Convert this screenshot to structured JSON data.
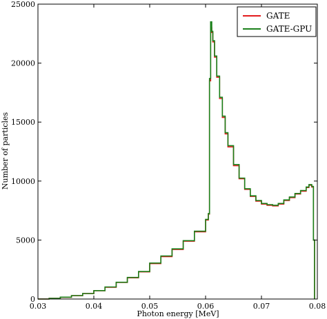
{
  "chart_data": {
    "type": "line",
    "title": "",
    "xlabel": "Photon energy [MeV]",
    "ylabel": "Number of particles",
    "xlim": [
      0.03,
      0.08
    ],
    "ylim": [
      0,
      25000
    ],
    "x_ticks": [
      0.03,
      0.04,
      0.05,
      0.06,
      0.07,
      0.08
    ],
    "x_tick_labels": [
      "0.03",
      "0.04",
      "0.05",
      "0.06",
      "0.07",
      "0.08"
    ],
    "y_ticks": [
      0,
      5000,
      10000,
      15000,
      20000,
      25000
    ],
    "y_tick_labels": [
      "0",
      "5000",
      "10000",
      "15000",
      "20000",
      "25000"
    ],
    "grid": false,
    "legend_position": "top-right",
    "x": [
      0.03,
      0.032,
      0.034,
      0.036,
      0.038,
      0.04,
      0.042,
      0.044,
      0.046,
      0.048,
      0.05,
      0.052,
      0.054,
      0.056,
      0.058,
      0.06,
      0.0605,
      0.0607,
      0.0609,
      0.0611,
      0.0613,
      0.0616,
      0.062,
      0.0625,
      0.063,
      0.0635,
      0.064,
      0.065,
      0.066,
      0.067,
      0.068,
      0.069,
      0.07,
      0.071,
      0.072,
      0.073,
      0.074,
      0.075,
      0.076,
      0.077,
      0.078,
      0.0785,
      0.079,
      0.0793,
      0.0795
    ],
    "series": [
      {
        "name": "GATE",
        "color": "#e31a1c",
        "values": [
          0,
          60,
          150,
          280,
          460,
          700,
          1000,
          1400,
          1800,
          2300,
          3000,
          3600,
          4200,
          4900,
          5700,
          6700,
          7200,
          18500,
          23000,
          22600,
          21800,
          20500,
          18800,
          17000,
          15400,
          14000,
          12900,
          11300,
          10200,
          9300,
          8700,
          8300,
          8050,
          7950,
          7900,
          8050,
          8350,
          8600,
          8900,
          9150,
          9450,
          9650,
          9500,
          5000,
          0
        ]
      },
      {
        "name": "GATE-GPU",
        "color": "#1a801a",
        "values": [
          0,
          55,
          160,
          290,
          470,
          710,
          1020,
          1420,
          1830,
          2330,
          3050,
          3650,
          4250,
          4950,
          5750,
          6750,
          7250,
          18700,
          23500,
          22700,
          21900,
          20600,
          18900,
          17100,
          15500,
          14100,
          13000,
          11400,
          10250,
          9350,
          8750,
          8350,
          8100,
          8000,
          7950,
          8100,
          8400,
          8650,
          8950,
          9200,
          9500,
          9700,
          9550,
          5000,
          0
        ]
      }
    ]
  }
}
